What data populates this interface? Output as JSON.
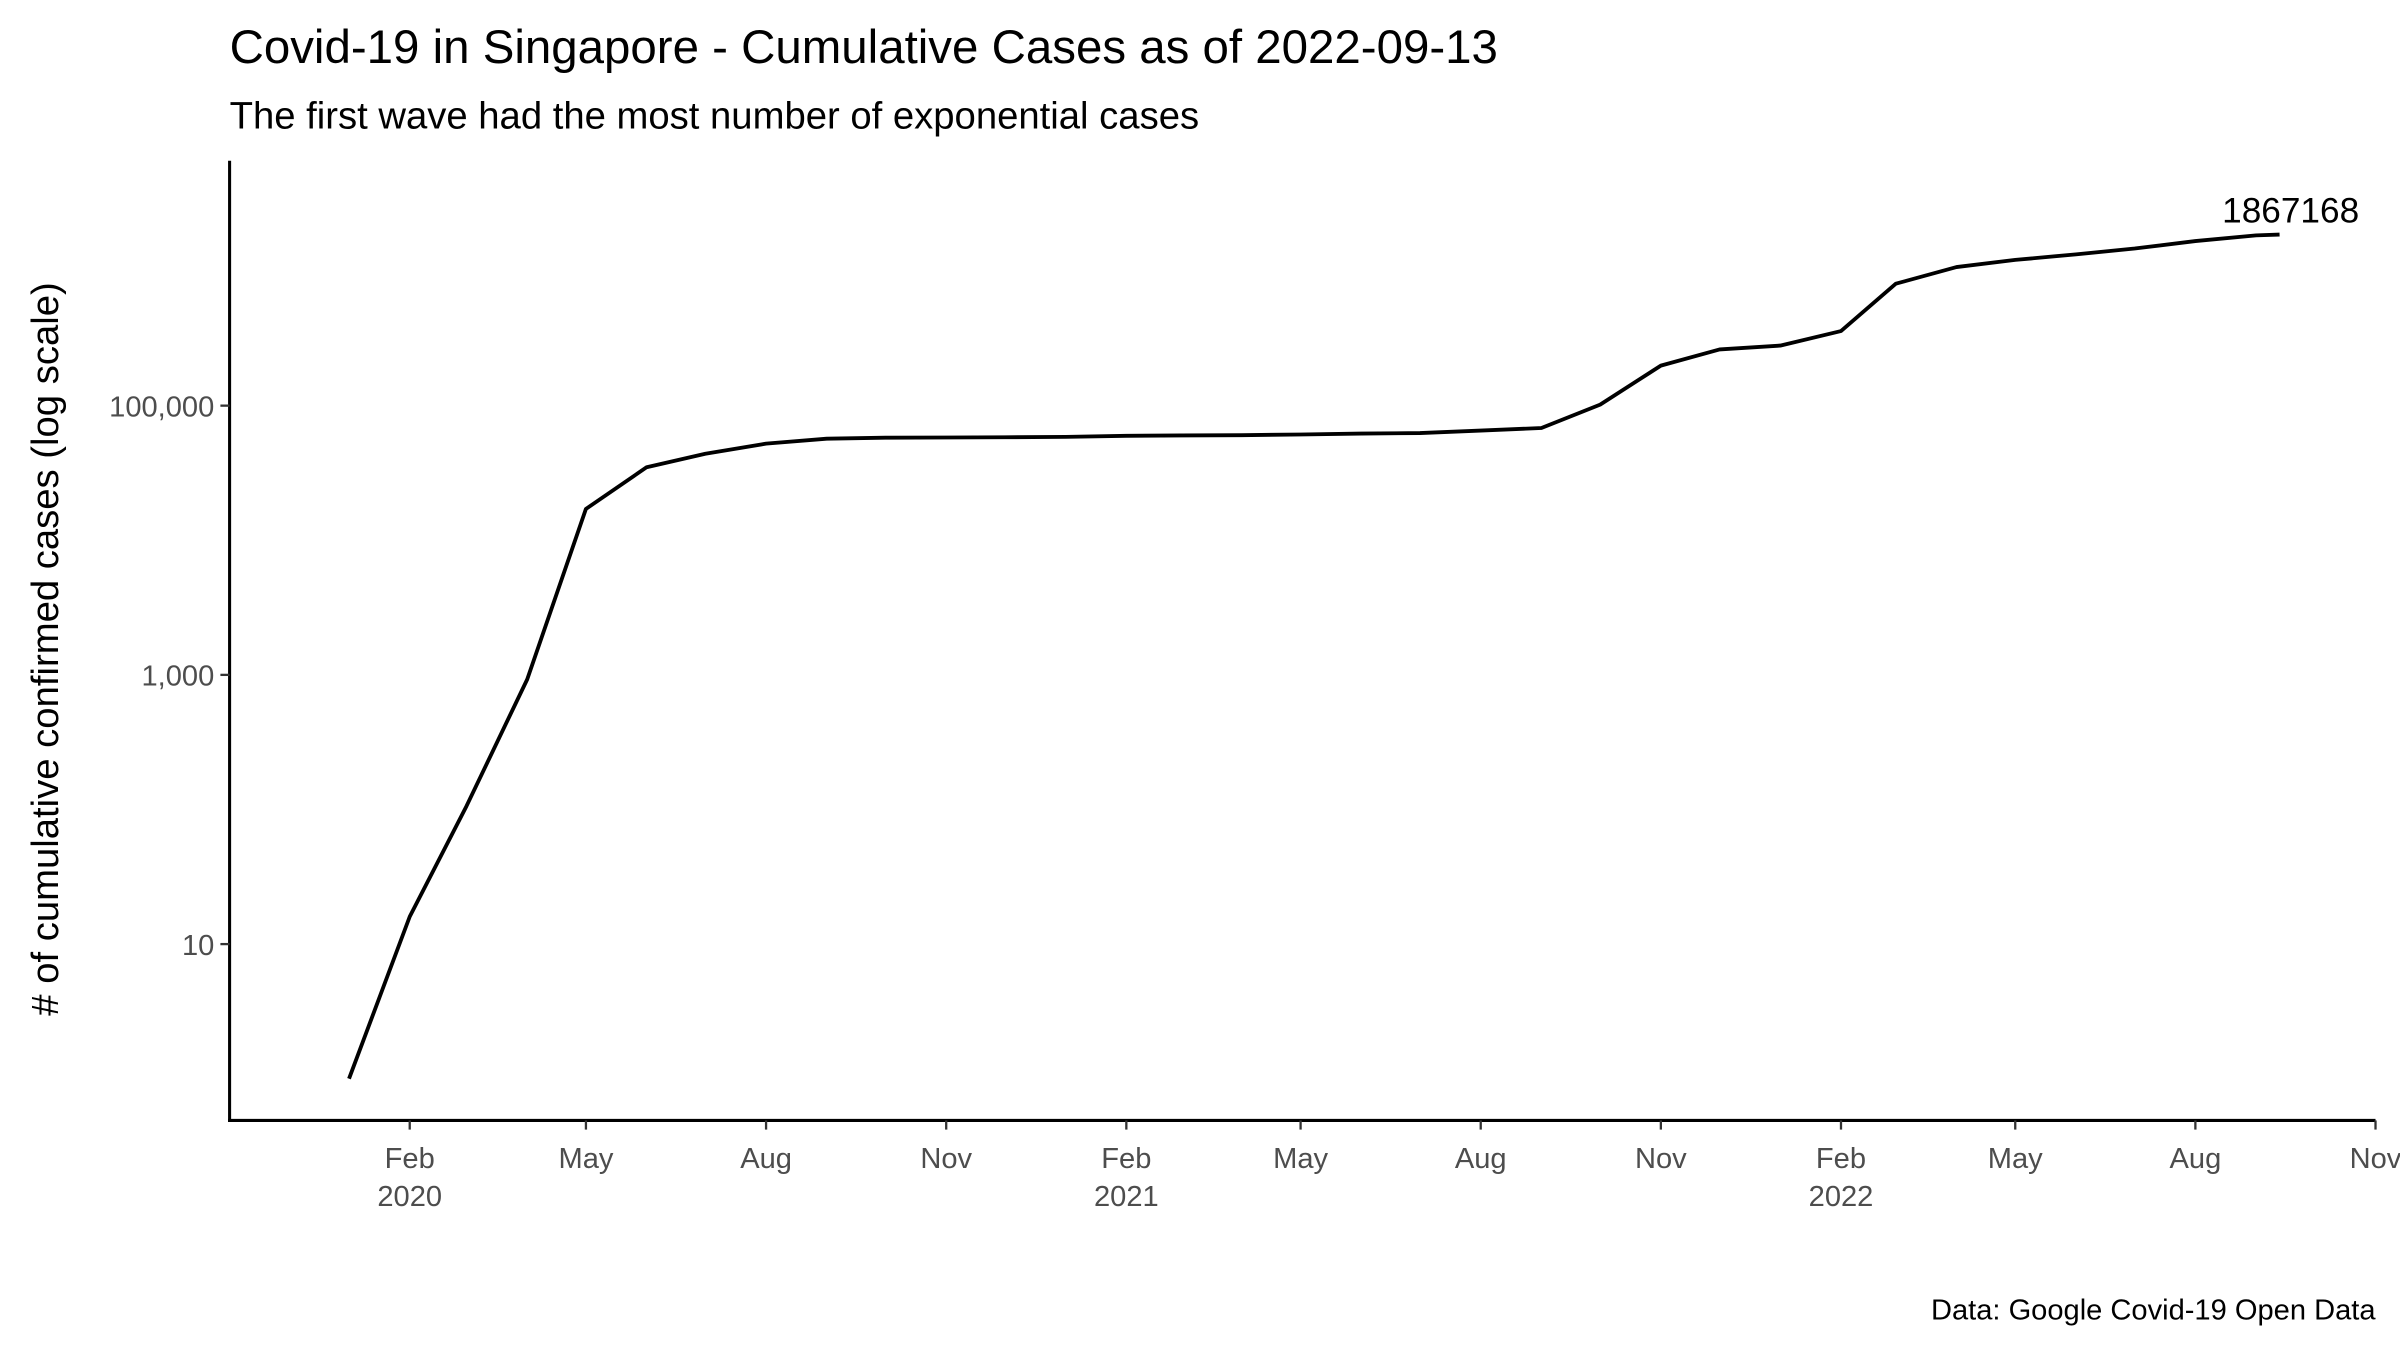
{
  "chart_data": {
    "type": "line",
    "title": "Covid-19 in Singapore - Cumulative Cases as of 2022-09-13",
    "subtitle": "The first wave had the most number of exponential cases",
    "y_label": "# of cumulative confirmed cases (log scale)",
    "caption": "Data: Google Covid-19 Open Data",
    "x": [
      "2020-01",
      "2020-02",
      "2020-03",
      "2020-04",
      "2020-05",
      "2020-06",
      "2020-07",
      "2020-08",
      "2020-09",
      "2020-10",
      "2020-11",
      "2020-12",
      "2021-01",
      "2021-02",
      "2021-03",
      "2021-04",
      "2021-05",
      "2021-06",
      "2021-07",
      "2021-08",
      "2021-09",
      "2021-10",
      "2021-11",
      "2021-12",
      "2022-01",
      "2022-02",
      "2022-03",
      "2022-04",
      "2022-05",
      "2022-06",
      "2022-07",
      "2022-08",
      "2022-09",
      "2022-09-13"
    ],
    "values": [
      1,
      16,
      106,
      926,
      17101,
      34884,
      43907,
      52205,
      56812,
      57765,
      57994,
      58218,
      58599,
      59721,
      60033,
      60347,
      61063,
      62051,
      62579,
      65315,
      68210,
      101786,
      198374,
      261636,
      279405,
      358154,
      805000,
      1070000,
      1210000,
      1330000,
      1470000,
      1670000,
      1840000,
      1867168
    ],
    "color": "#000000",
    "log_scale": true,
    "grid": false,
    "ylim": [
      0.49,
      6600000
    ],
    "yticks": [
      10,
      {
        "value": 1000,
        "label": "1,000"
      },
      {
        "value": 100000,
        "label": "100,000"
      }
    ],
    "xlim": [
      "2019-11",
      "2022-11"
    ],
    "xticks": [
      {
        "value": "2020-02",
        "label": [
          "Feb",
          "2020"
        ]
      },
      {
        "value": "2020-05",
        "label": [
          "May"
        ]
      },
      {
        "value": "2020-08",
        "label": [
          "Aug"
        ]
      },
      {
        "value": "2020-11",
        "label": [
          "Nov"
        ]
      },
      {
        "value": "2021-02",
        "label": [
          "Feb",
          "2021"
        ]
      },
      {
        "value": "2021-05",
        "label": [
          "May"
        ]
      },
      {
        "value": "2021-08",
        "label": [
          "Aug"
        ]
      },
      {
        "value": "2021-11",
        "label": [
          "Nov"
        ]
      },
      {
        "value": "2022-02",
        "label": [
          "Feb",
          "2022"
        ]
      },
      {
        "value": "2022-05",
        "label": [
          "May"
        ]
      },
      {
        "value": "2022-08",
        "label": [
          "Aug"
        ]
      },
      {
        "value": "2022-11",
        "label": [
          "Nov"
        ]
      }
    ]
  }
}
